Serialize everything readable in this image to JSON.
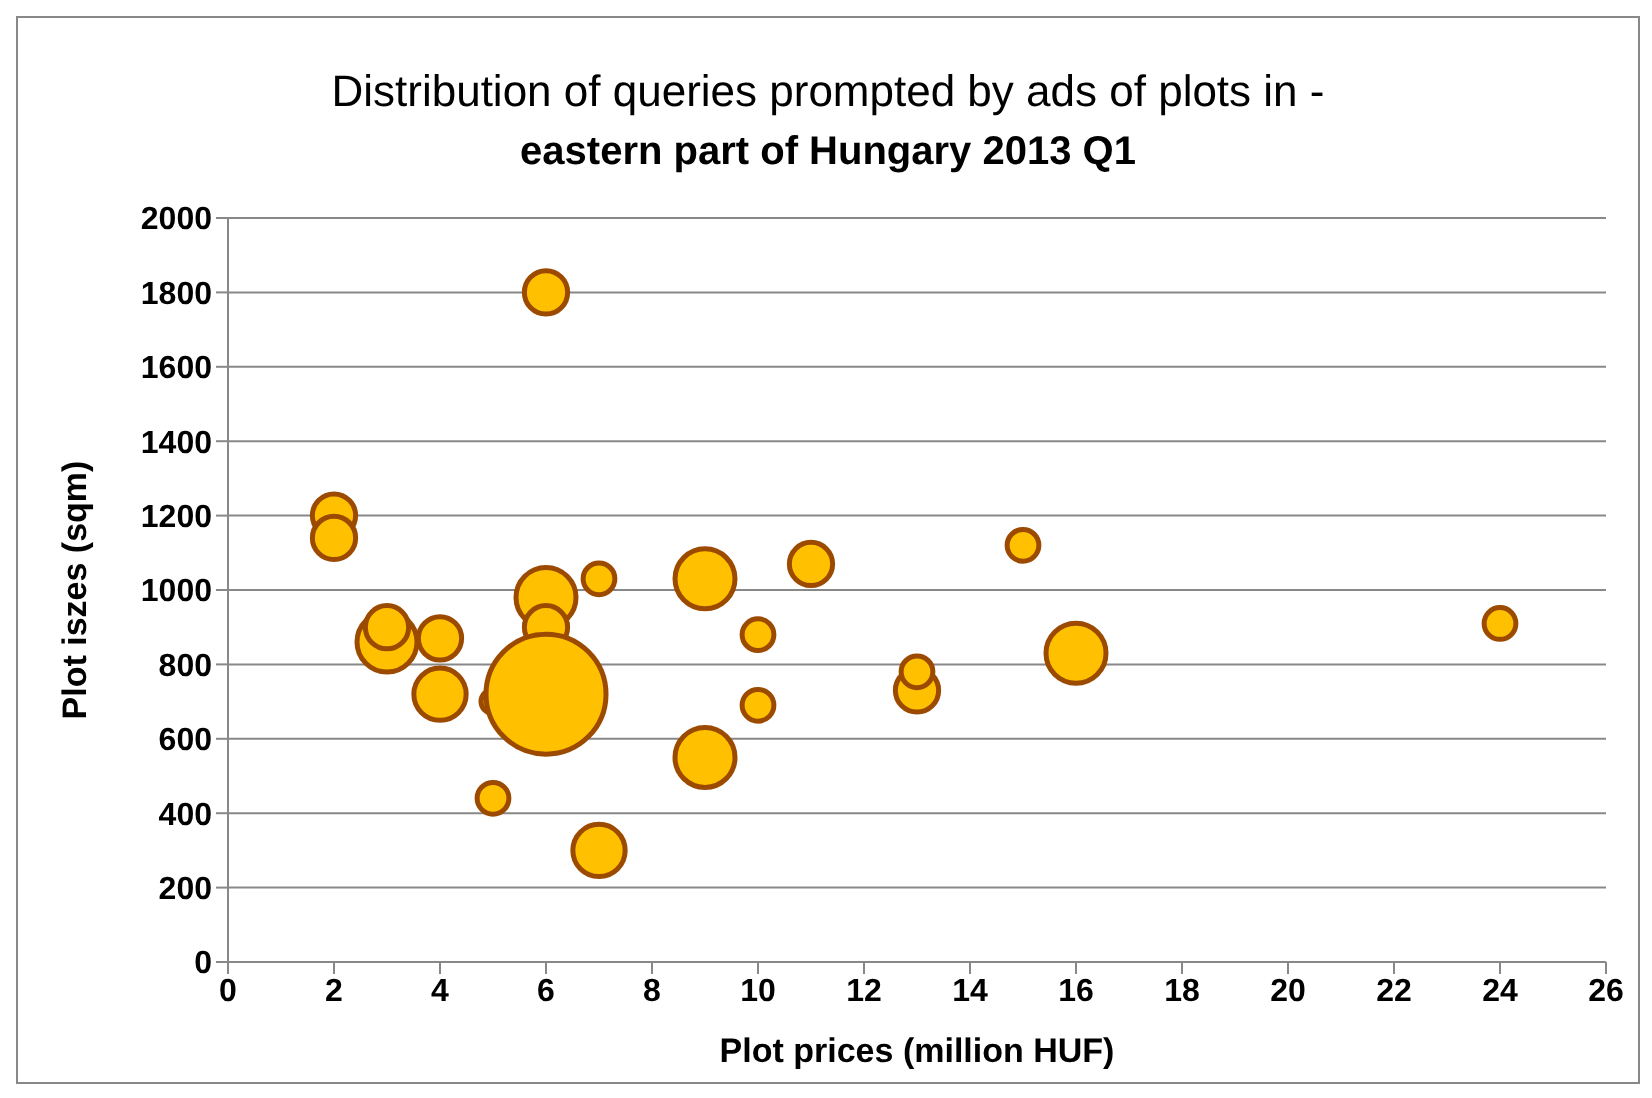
{
  "chart_data": {
    "type": "bubble",
    "title": "Distribution of queries prompted by ads of plots in -",
    "subtitle": "eastern part of Hungary 2013 Q1",
    "xlabel": "Plot prices (million HUF)",
    "ylabel": "Plot iszes (sqm)",
    "x": [
      2,
      2,
      3,
      3,
      4,
      4,
      5,
      5,
      6,
      6,
      6,
      6,
      7,
      7,
      9,
      9,
      10,
      10,
      11,
      13,
      13,
      15,
      16,
      24
    ],
    "values": [
      1200,
      1140,
      860,
      900,
      870,
      720,
      700,
      440,
      1800,
      980,
      900,
      720,
      1030,
      300,
      1030,
      550,
      880,
      690,
      1070,
      730,
      780,
      1120,
      830,
      910
    ],
    "sizes": [
      0.13,
      0.13,
      0.25,
      0.13,
      0.13,
      0.19,
      0.04,
      0.07,
      0.13,
      0.25,
      0.13,
      1,
      0.07,
      0.19,
      0.25,
      0.25,
      0.07,
      0.07,
      0.13,
      0.13,
      0.07,
      0.07,
      0.25,
      0.07
    ],
    "color": "#ffc000",
    "xlim": [
      0,
      26
    ],
    "xticks": [
      0,
      2,
      4,
      6,
      8,
      10,
      12,
      14,
      16,
      18,
      20,
      22,
      24,
      26
    ],
    "ylim": [
      0,
      2000
    ],
    "yticks": [
      0,
      200,
      400,
      600,
      800,
      1000,
      1200,
      1400,
      1600,
      1800,
      2000
    ],
    "grid": "y"
  }
}
